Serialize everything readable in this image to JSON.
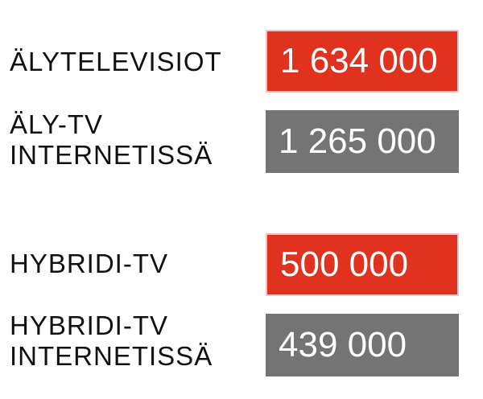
{
  "items": [
    {
      "label_lines": [
        "ÄLYTELEVISIOT"
      ],
      "value": "1 634 000"
    },
    {
      "label_lines": [
        "ÄLY-TV",
        "INTERNETISSÄ"
      ],
      "value": "1 265 000"
    },
    {
      "label_lines": [
        "HYBRIDI-TV"
      ],
      "value": "500 000"
    },
    {
      "label_lines": [
        "HYBRIDI-TV",
        "INTERNETISSÄ"
      ],
      "value": "439 000"
    }
  ]
}
